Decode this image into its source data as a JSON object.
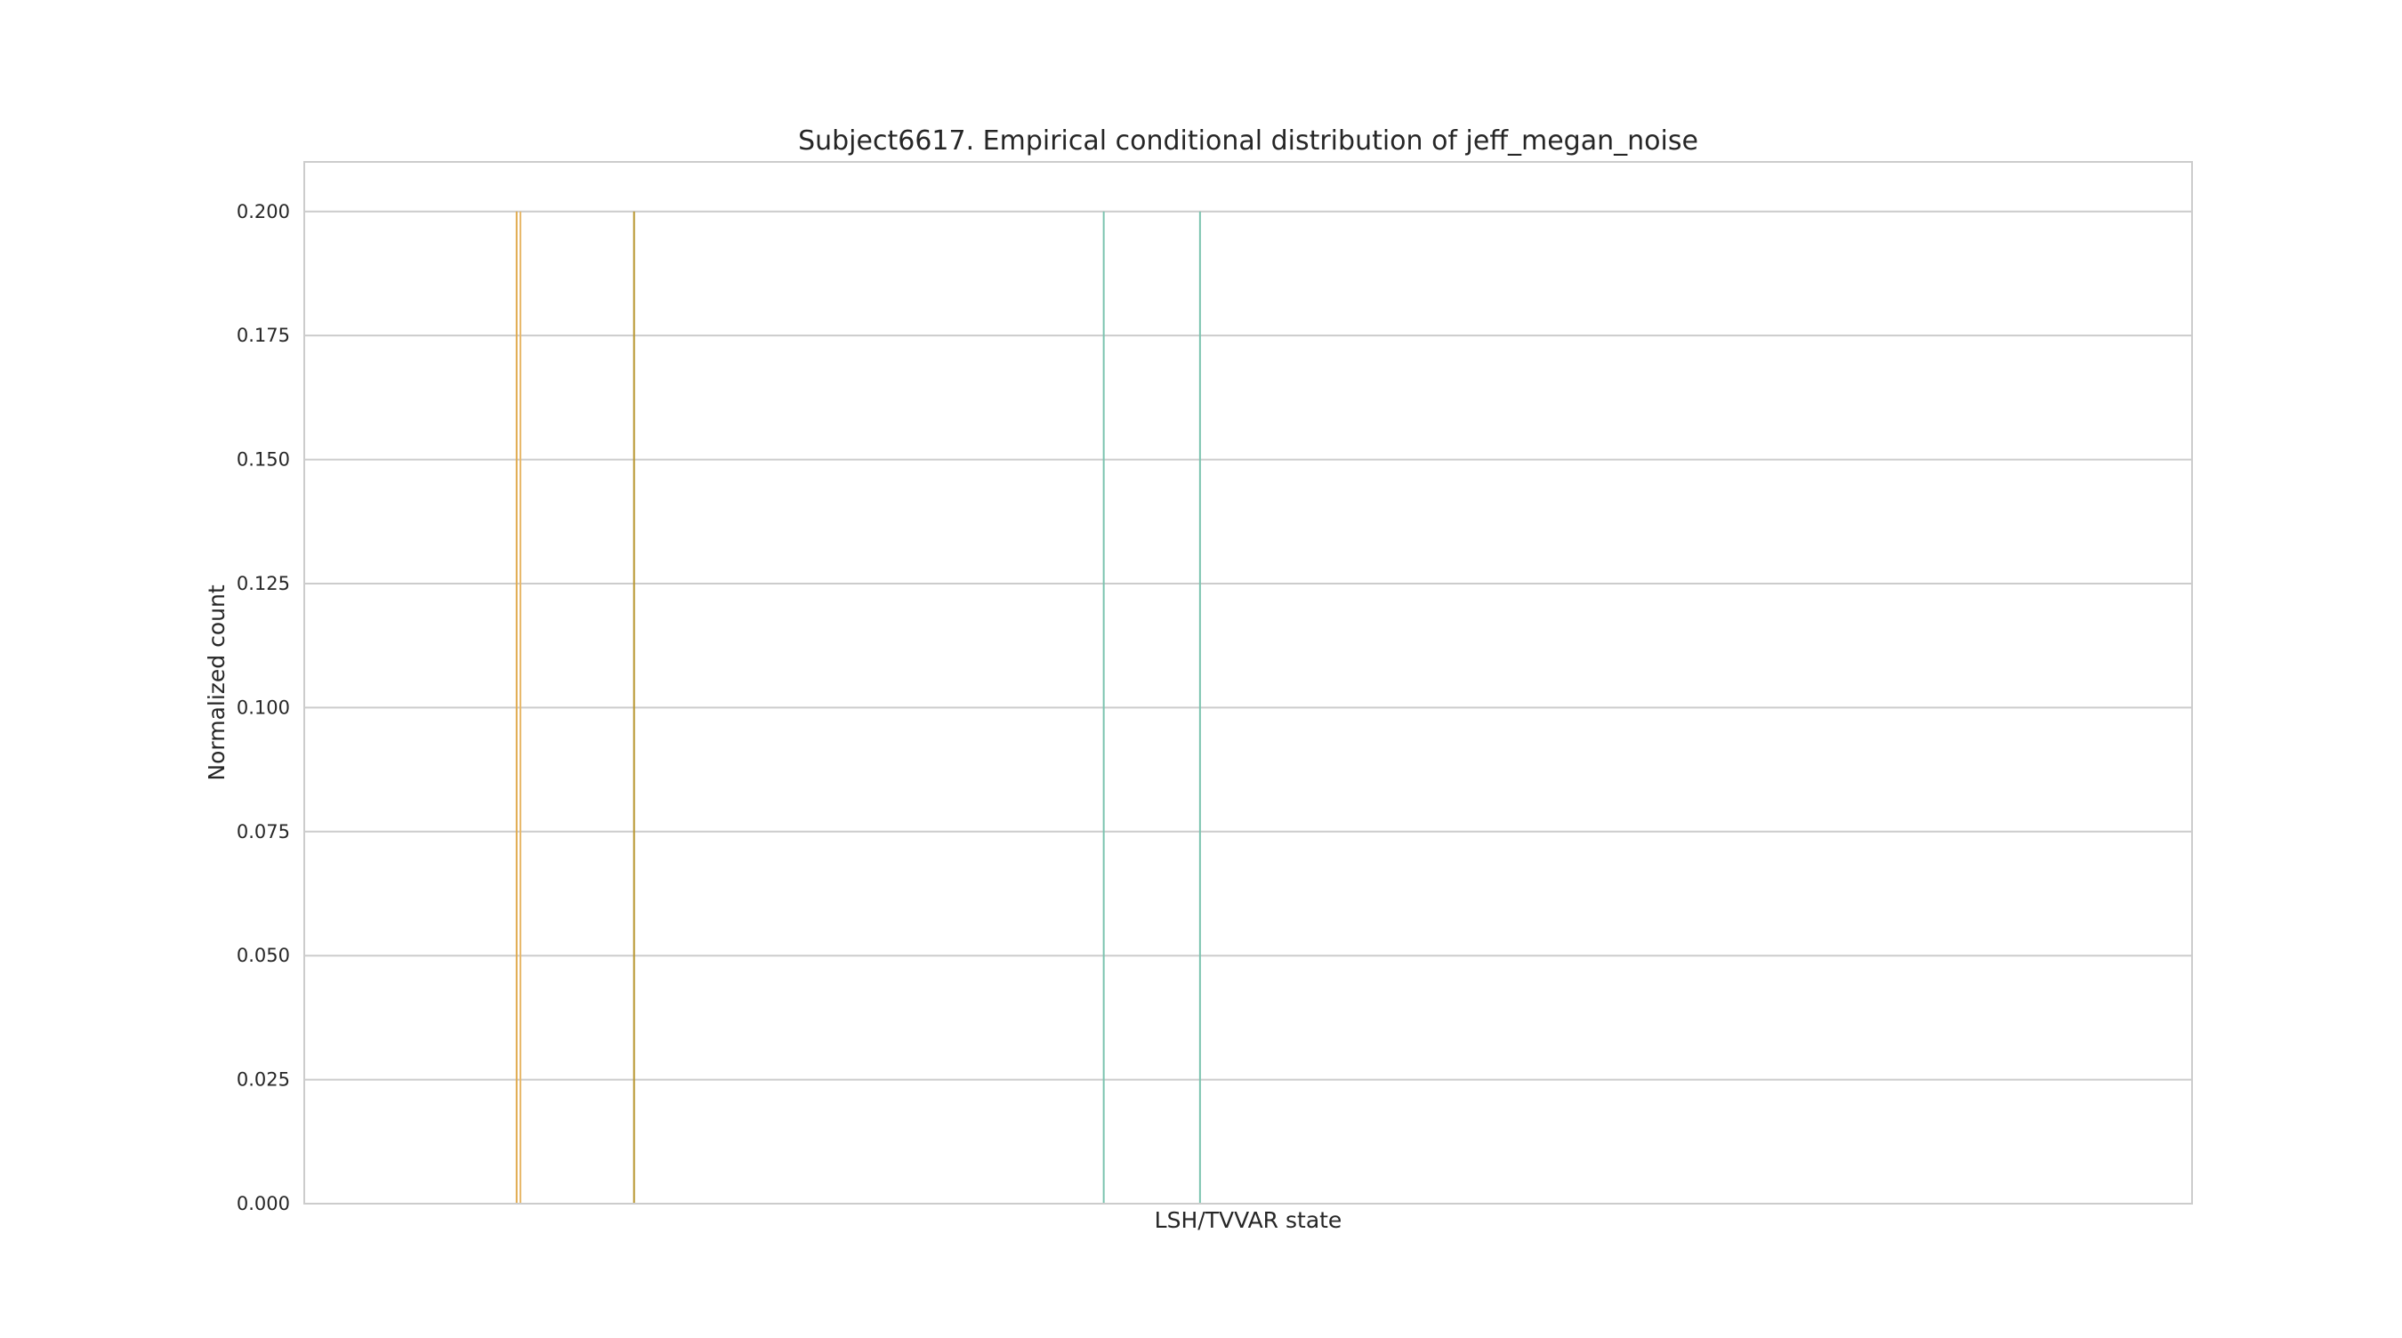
{
  "chart_data": {
    "type": "bar",
    "title": "Subject6617. Empirical conditional distribution of jeff_megan_noise",
    "xlabel": "LSH/TVVAR state",
    "ylabel": "Normalized count",
    "ylim": [
      0,
      0.21
    ],
    "xlim": [
      0,
      1
    ],
    "yticks": [
      "0.000",
      "0.025",
      "0.050",
      "0.075",
      "0.100",
      "0.125",
      "0.150",
      "0.175",
      "0.200"
    ],
    "grid": true,
    "legend": "none",
    "bars": [
      {
        "x": 0.1125,
        "value": 0.2,
        "color": "#e0a94a"
      },
      {
        "x": 0.1145,
        "value": 0.2,
        "color": "#e8b86a"
      },
      {
        "x": 0.1747,
        "value": 0.2,
        "color": "#b8962e"
      },
      {
        "x": 0.4235,
        "value": 0.2,
        "color": "#7cc4b0"
      },
      {
        "x": 0.4745,
        "value": 0.2,
        "color": "#7cc4b0"
      }
    ],
    "colors": {
      "grid": "#cccccc",
      "frame": "#cccccc",
      "text": "#262626"
    }
  }
}
